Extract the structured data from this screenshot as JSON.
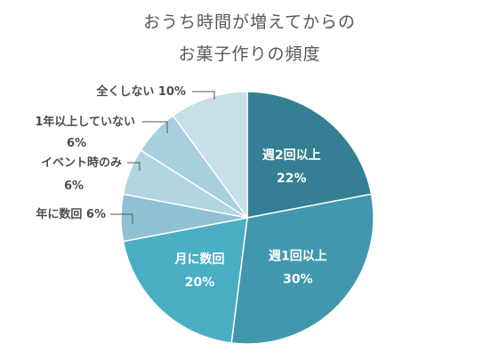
{
  "chart_data": {
    "type": "pie",
    "title_lines": [
      "おうち時間が増えてからの",
      "お菓子作りの頻度"
    ],
    "slices": [
      {
        "name": "週2回以上",
        "value": 22,
        "label": "22%",
        "color": "#347f93"
      },
      {
        "name": "週1回以上",
        "value": 30,
        "label": "30%",
        "color": "#4198ae"
      },
      {
        "name": "月に数回",
        "value": 20,
        "label": "20%",
        "color": "#4aaec4"
      },
      {
        "name": "年に数回",
        "value": 6,
        "label": "6%",
        "color": "#8fc1d2"
      },
      {
        "name": "イベント時のみ",
        "value": 6,
        "label": "6%",
        "color": "#b2d5e2"
      },
      {
        "name": "1年以上していない",
        "value": 6,
        "label": "6%",
        "color": "#a7cfdd"
      },
      {
        "name": "全くしない",
        "value": 10,
        "label": "10%",
        "color": "#c6dfe8"
      }
    ],
    "outside_labels": {
      "全くしない": "全くしない 10%",
      "1年以上していない_line1": "1年以上していない",
      "1年以上していない_line2": "6%",
      "イベント時のみ_line1": "イベント時のみ",
      "イベント時のみ_line2": "6%",
      "年に数回": "年に数回 6%"
    }
  }
}
